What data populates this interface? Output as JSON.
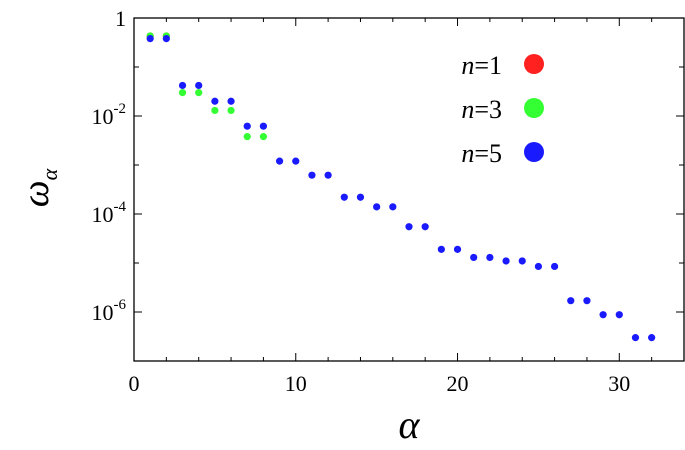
{
  "chart_data": {
    "type": "scatter",
    "title": "",
    "xlabel": "α",
    "ylabel": "ω",
    "ylabel_subscript": "α",
    "xlim": [
      0,
      34
    ],
    "ylim": [
      1e-07,
      1
    ],
    "yscale": "log",
    "grid": false,
    "legend_position": "top-right",
    "xticks": [
      0,
      10,
      20,
      30
    ],
    "xtick_labels": [
      "0",
      "10",
      "20",
      "30"
    ],
    "yticks": [
      {
        "value": 1,
        "base": "1",
        "exp": ""
      },
      {
        "value": 0.01,
        "base": "10",
        "exp": "-2"
      },
      {
        "value": 0.0001,
        "base": "10",
        "exp": "-4"
      },
      {
        "value": 1e-06,
        "base": "10",
        "exp": "-6"
      }
    ],
    "series": [
      {
        "name": "n=1",
        "label_var": "n",
        "label_rest": "=1",
        "color": "#ff2020",
        "x": [
          1,
          2
        ],
        "y": [
          0.43,
          0.43
        ]
      },
      {
        "name": "n=3",
        "label_var": "n",
        "label_rest": "=3",
        "color": "#33ff33",
        "x": [
          1,
          2,
          3,
          4,
          5,
          6,
          7,
          8
        ],
        "y": [
          0.43,
          0.43,
          0.03,
          0.03,
          0.013,
          0.013,
          0.0038,
          0.0038
        ]
      },
      {
        "name": "n=5",
        "label_var": "n",
        "label_rest": "=5",
        "color": "#1a1aff",
        "x": [
          1,
          2,
          3,
          4,
          5,
          6,
          7,
          8,
          9,
          10,
          11,
          12,
          13,
          14,
          15,
          16,
          17,
          18,
          19,
          20,
          21,
          22,
          23,
          24,
          25,
          26,
          27,
          28,
          29,
          30,
          31,
          32
        ],
        "y": [
          0.38,
          0.38,
          0.042,
          0.042,
          0.02,
          0.02,
          0.0062,
          0.0062,
          0.0012,
          0.0012,
          0.00062,
          0.00062,
          0.00022,
          0.00022,
          0.00014,
          0.00014,
          5.5e-05,
          5.5e-05,
          1.9e-05,
          1.9e-05,
          1.3e-05,
          1.3e-05,
          1.1e-05,
          1.1e-05,
          8.5e-06,
          8.5e-06,
          1.7e-06,
          1.7e-06,
          8.8e-07,
          8.8e-07,
          3e-07,
          3e-07
        ]
      }
    ]
  }
}
